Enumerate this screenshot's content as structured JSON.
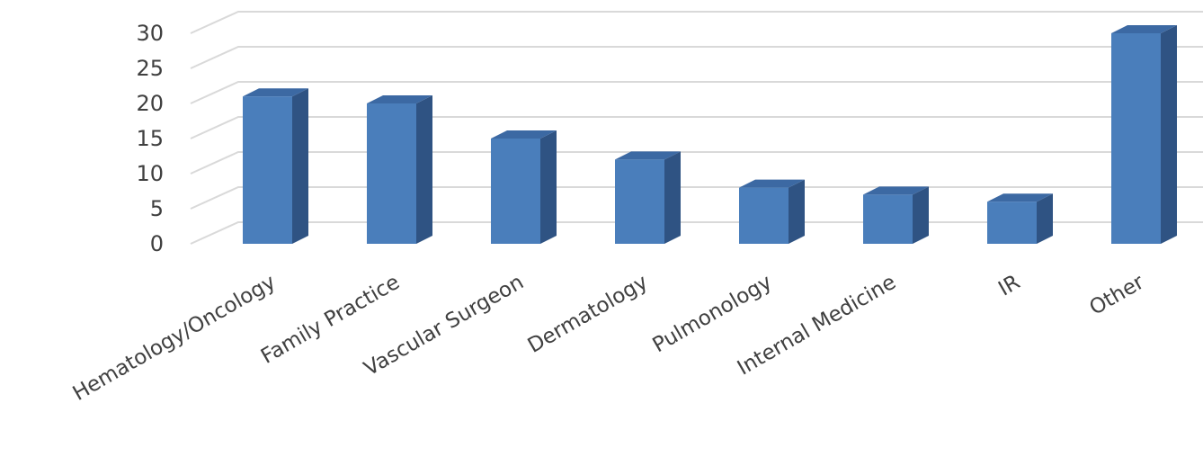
{
  "chart_data": {
    "type": "bar",
    "categories": [
      "Hematology/Oncology",
      "Family Practice",
      "Vascular Surgeon",
      "Dermatology",
      "Pulmonology",
      "Internal Medicine",
      "IR",
      "Other"
    ],
    "values": [
      21,
      20,
      15,
      12,
      8,
      7,
      6,
      30
    ],
    "title": "",
    "xlabel": "",
    "ylabel": "",
    "ylim": [
      0,
      30
    ],
    "yticks": [
      0,
      5,
      10,
      15,
      20,
      25,
      30
    ],
    "grid": true,
    "legend": "none",
    "style": "3d-column",
    "colors": {
      "bar_front": "#4a7ebb",
      "bar_side": "#2f5383",
      "bar_top": "#3c69a3",
      "grid": "#d9d9d9",
      "text": "#404040"
    }
  }
}
